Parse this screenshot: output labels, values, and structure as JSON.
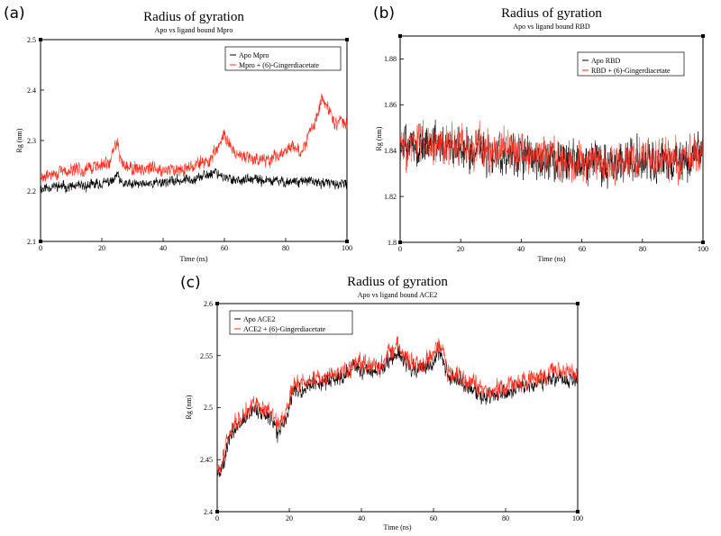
{
  "chart_data": [
    {
      "type": "line",
      "panel_label": "(a)",
      "title": "Radius of gyration",
      "subtitle": "Apo vs ligand bound Mpro",
      "xlabel": "Time (ns)",
      "ylabel": "Rg (nm)",
      "xlim": [
        0,
        100
      ],
      "ylim": [
        2.1,
        2.5
      ],
      "xticks": [
        0,
        20,
        40,
        60,
        80,
        100
      ],
      "xtick_labels": [
        "0",
        "20",
        "40",
        "60",
        "80",
        "100"
      ],
      "yticks": [
        2.1,
        2.2,
        2.3,
        2.4,
        2.5
      ],
      "ytick_labels": [
        "2.1",
        "2.2",
        "2.3",
        "2.4",
        "2.5"
      ],
      "legend_position": "top-right",
      "series": [
        {
          "name": "Apo Mpro",
          "color": "#000000",
          "noise": 0.009,
          "seed": 11,
          "anchors": [
            [
              0,
              2.205
            ],
            [
              5,
              2.21
            ],
            [
              10,
              2.208
            ],
            [
              15,
              2.21
            ],
            [
              20,
              2.215
            ],
            [
              24,
              2.22
            ],
            [
              25,
              2.235
            ],
            [
              26,
              2.215
            ],
            [
              30,
              2.212
            ],
            [
              35,
              2.215
            ],
            [
              40,
              2.218
            ],
            [
              45,
              2.22
            ],
            [
              50,
              2.225
            ],
            [
              55,
              2.232
            ],
            [
              57,
              2.24
            ],
            [
              60,
              2.225
            ],
            [
              65,
              2.222
            ],
            [
              70,
              2.222
            ],
            [
              75,
              2.22
            ],
            [
              80,
              2.218
            ],
            [
              85,
              2.22
            ],
            [
              90,
              2.217
            ],
            [
              95,
              2.215
            ],
            [
              100,
              2.212
            ]
          ]
        },
        {
          "name": "Mpro + (6)-Gingerdiacetate",
          "color": "#ff2a1a",
          "noise": 0.012,
          "seed": 29,
          "anchors": [
            [
              0,
              2.225
            ],
            [
              5,
              2.235
            ],
            [
              10,
              2.24
            ],
            [
              15,
              2.245
            ],
            [
              20,
              2.25
            ],
            [
              23,
              2.26
            ],
            [
              25,
              2.305
            ],
            [
              26,
              2.26
            ],
            [
              30,
              2.245
            ],
            [
              35,
              2.245
            ],
            [
              40,
              2.242
            ],
            [
              45,
              2.245
            ],
            [
              50,
              2.25
            ],
            [
              55,
              2.26
            ],
            [
              58,
              2.285
            ],
            [
              60,
              2.31
            ],
            [
              63,
              2.28
            ],
            [
              66,
              2.265
            ],
            [
              70,
              2.265
            ],
            [
              75,
              2.262
            ],
            [
              80,
              2.28
            ],
            [
              83,
              2.29
            ],
            [
              85,
              2.275
            ],
            [
              87,
              2.305
            ],
            [
              90,
              2.34
            ],
            [
              92,
              2.385
            ],
            [
              94,
              2.36
            ],
            [
              96,
              2.335
            ],
            [
              98,
              2.34
            ],
            [
              100,
              2.33
            ]
          ]
        }
      ]
    },
    {
      "type": "line",
      "panel_label": "(b)",
      "title": "Radius of gyration",
      "subtitle": "Apo vs ligand bound RBD",
      "xlabel": "Time (ns)",
      "ylabel": "Rg (nm)",
      "xlim": [
        0,
        100
      ],
      "ylim": [
        1.8,
        1.89
      ],
      "xticks": [
        0,
        20,
        40,
        60,
        80,
        100
      ],
      "xtick_labels": [
        "0",
        "20",
        "40",
        "60",
        "80",
        "100"
      ],
      "yticks": [
        1.8,
        1.82,
        1.84,
        1.86,
        1.88
      ],
      "ytick_labels": [
        "1.8",
        "1.82",
        "1.84",
        "1.86",
        "1.88"
      ],
      "legend_position": "top-right",
      "series": [
        {
          "name": "Apo RBD",
          "color": "#000000",
          "noise": 0.0075,
          "seed": 47,
          "anchors": [
            [
              0,
              1.842
            ],
            [
              10,
              1.843
            ],
            [
              20,
              1.841
            ],
            [
              30,
              1.839
            ],
            [
              40,
              1.838
            ],
            [
              50,
              1.836
            ],
            [
              60,
              1.834
            ],
            [
              70,
              1.835
            ],
            [
              80,
              1.836
            ],
            [
              90,
              1.835
            ],
            [
              100,
              1.838
            ]
          ]
        },
        {
          "name": "RBD + (6)-Gingerdiacetate",
          "color": "#ff2a1a",
          "noise": 0.0075,
          "seed": 83,
          "anchors": [
            [
              0,
              1.842
            ],
            [
              10,
              1.844
            ],
            [
              20,
              1.842
            ],
            [
              30,
              1.84
            ],
            [
              40,
              1.839
            ],
            [
              50,
              1.837
            ],
            [
              60,
              1.835
            ],
            [
              70,
              1.836
            ],
            [
              80,
              1.837
            ],
            [
              90,
              1.836
            ],
            [
              100,
              1.839
            ]
          ]
        }
      ]
    },
    {
      "type": "line",
      "panel_label": "(c)",
      "title": "Radius of gyration",
      "subtitle": "Apo vs ligand bound ACE2",
      "xlabel": "Time (ns)",
      "ylabel": "Rg (nm)",
      "xlim": [
        0,
        100
      ],
      "ylim": [
        2.4,
        2.6
      ],
      "xticks": [
        0,
        20,
        40,
        60,
        80,
        100
      ],
      "xtick_labels": [
        "0",
        "20",
        "40",
        "60",
        "80",
        "100"
      ],
      "yticks": [
        2.4,
        2.45,
        2.5,
        2.55,
        2.6
      ],
      "ytick_labels": [
        "2.4",
        "2.45",
        "2.5",
        "2.55",
        "2.6"
      ],
      "legend_position": "top-left",
      "series": [
        {
          "name": "Apo ACE2",
          "color": "#000000",
          "noise": 0.007,
          "seed": 101,
          "anchors": [
            [
              0,
              2.435
            ],
            [
              1,
              2.44
            ],
            [
              3,
              2.465
            ],
            [
              5,
              2.48
            ],
            [
              8,
              2.49
            ],
            [
              10,
              2.5
            ],
            [
              12,
              2.495
            ],
            [
              15,
              2.49
            ],
            [
              17,
              2.475
            ],
            [
              19,
              2.49
            ],
            [
              21,
              2.515
            ],
            [
              25,
              2.52
            ],
            [
              30,
              2.525
            ],
            [
              35,
              2.53
            ],
            [
              38,
              2.54
            ],
            [
              40,
              2.535
            ],
            [
              45,
              2.535
            ],
            [
              50,
              2.555
            ],
            [
              52,
              2.545
            ],
            [
              55,
              2.535
            ],
            [
              60,
              2.545
            ],
            [
              62,
              2.555
            ],
            [
              64,
              2.53
            ],
            [
              68,
              2.525
            ],
            [
              72,
              2.515
            ],
            [
              75,
              2.51
            ],
            [
              80,
              2.515
            ],
            [
              85,
              2.52
            ],
            [
              90,
              2.525
            ],
            [
              95,
              2.53
            ],
            [
              100,
              2.525
            ]
          ]
        },
        {
          "name": "ACE2 + (6)-Gingerdiacetate",
          "color": "#ff2a1a",
          "noise": 0.008,
          "seed": 137,
          "anchors": [
            [
              0,
              2.44
            ],
            [
              1,
              2.445
            ],
            [
              3,
              2.47
            ],
            [
              5,
              2.485
            ],
            [
              8,
              2.495
            ],
            [
              10,
              2.505
            ],
            [
              12,
              2.5
            ],
            [
              15,
              2.495
            ],
            [
              17,
              2.48
            ],
            [
              19,
              2.495
            ],
            [
              21,
              2.52
            ],
            [
              25,
              2.525
            ],
            [
              30,
              2.53
            ],
            [
              35,
              2.535
            ],
            [
              38,
              2.545
            ],
            [
              40,
              2.54
            ],
            [
              45,
              2.54
            ],
            [
              50,
              2.56
            ],
            [
              52,
              2.55
            ],
            [
              55,
              2.54
            ],
            [
              60,
              2.55
            ],
            [
              62,
              2.56
            ],
            [
              64,
              2.535
            ],
            [
              68,
              2.53
            ],
            [
              72,
              2.52
            ],
            [
              75,
              2.515
            ],
            [
              80,
              2.52
            ],
            [
              85,
              2.525
            ],
            [
              90,
              2.53
            ],
            [
              95,
              2.535
            ],
            [
              100,
              2.53
            ]
          ]
        }
      ]
    }
  ]
}
